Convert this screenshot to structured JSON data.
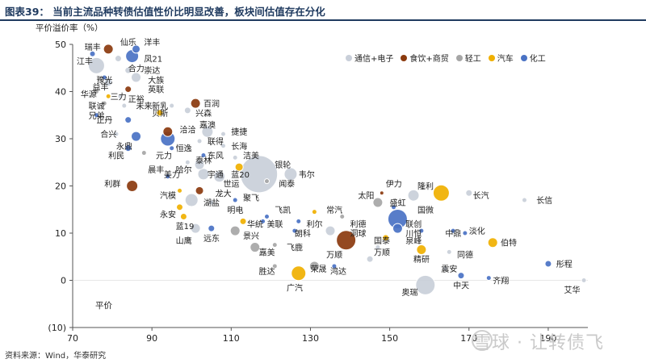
{
  "title": "图表39：  当前主流品种转债估值性价比明显改善，板块间估值存在分化",
  "source": "资料来源：Wind，华泰研究",
  "watermark": "雪球 · 让转债飞",
  "chart_data": {
    "type": "scatter",
    "ylabel": "平价溢价率（%）",
    "xlabel": "平价",
    "xlim": [
      70,
      200
    ],
    "ylim": [
      -10,
      50
    ],
    "xticks": [
      70,
      90,
      110,
      130,
      150,
      170,
      190
    ],
    "ytick_labels": [
      "(10)",
      "0",
      "10",
      "20",
      "30",
      "40",
      "50"
    ],
    "yticks": [
      -10,
      0,
      10,
      20,
      30,
      40,
      50
    ],
    "legend_position": "top-right",
    "series": [
      {
        "name": "通信+电子",
        "color": "#c9cfd9"
      },
      {
        "name": "食饮+商贸",
        "color": "#8b3a0e"
      },
      {
        "name": "轻工",
        "color": "#a6a6a6"
      },
      {
        "name": "汽车",
        "color": "#f0b000"
      },
      {
        "name": "化工",
        "color": "#4a72c4"
      }
    ],
    "points": [
      {
        "label": "瑞丰",
        "x": 75,
        "y": 48,
        "size": 3.5,
        "series": "化工"
      },
      {
        "label": "江丰",
        "x": 76,
        "y": 45.5,
        "size": 10,
        "series": "通信+电子"
      },
      {
        "label": "仙乐",
        "x": 79,
        "y": 49,
        "size": 6,
        "series": "食饮+商贸"
      },
      {
        "label": "洋丰",
        "x": 86,
        "y": 49,
        "size": 5,
        "series": "化工"
      },
      {
        "label": "凤21",
        "x": 85,
        "y": 47.5,
        "size": 8,
        "series": "化工"
      },
      {
        "label": "合力",
        "x": 81.5,
        "y": 47,
        "size": 4,
        "series": "通信+电子"
      },
      {
        "label": "崇达",
        "x": 84,
        "y": 44.5,
        "size": 4,
        "series": "通信+电子"
      },
      {
        "label": "大族",
        "x": 86,
        "y": 43,
        "size": 6,
        "series": "通信+电子"
      },
      {
        "label": "豫光",
        "x": 78,
        "y": 43,
        "size": 3,
        "series": "化工"
      },
      {
        "label": "益丰",
        "x": 79,
        "y": 42,
        "size": 5,
        "series": "通信+电子"
      },
      {
        "label": "英联",
        "x": 84,
        "y": 40.5,
        "size": 4,
        "series": "食饮+商贸"
      },
      {
        "label": "华源",
        "x": 76,
        "y": 40,
        "size": 3,
        "series": "轻工"
      },
      {
        "label": "三力",
        "x": 79,
        "y": 39,
        "size": 3,
        "series": "汽车"
      },
      {
        "label": "正裕",
        "x": 82,
        "y": 39,
        "size": 3,
        "series": "通信+电子"
      },
      {
        "label": "联诚",
        "x": 78,
        "y": 37.5,
        "size": 3,
        "series": "轻工"
      },
      {
        "label": "未来",
        "x": 83,
        "y": 37,
        "size": 3,
        "series": "通信+电子"
      },
      {
        "label": "新乳",
        "x": 95,
        "y": 37,
        "size": 3,
        "series": "通信+电子"
      },
      {
        "label": "百润",
        "x": 101,
        "y": 37.5,
        "size": 6,
        "series": "食饮+商贸"
      },
      {
        "label": "贝斯",
        "x": 92,
        "y": 35.5,
        "size": 4,
        "series": "汽车"
      },
      {
        "label": "兴森",
        "x": 99,
        "y": 36,
        "size": 4,
        "series": "通信+电子"
      },
      {
        "label": "兄弟",
        "x": 76,
        "y": 35,
        "size": 3,
        "series": "化工"
      },
      {
        "label": "正丹",
        "x": 84,
        "y": 34,
        "size": 4,
        "series": "化工"
      },
      {
        "label": "洽洽",
        "x": 94,
        "y": 31.5,
        "size": 6,
        "series": "食饮+商贸"
      },
      {
        "label": "嘉澳",
        "x": 104,
        "y": 31.5,
        "size": 7,
        "series": "通信+电子"
      },
      {
        "label": "合兴",
        "x": 81,
        "y": 31,
        "size": 3,
        "series": "通信+电子"
      },
      {
        "label": "捷捷",
        "x": 108,
        "y": 31,
        "size": 3,
        "series": "通信+电子"
      },
      {
        "label": "元力",
        "x": 94,
        "y": 30,
        "size": 9,
        "series": "化工"
      },
      {
        "label": "联得",
        "x": 102,
        "y": 29.5,
        "size": 3,
        "series": "通信+电子"
      },
      {
        "label": "永鼎",
        "x": 86,
        "y": 30.5,
        "size": 6,
        "series": "化工"
      },
      {
        "label": "长海",
        "x": 108,
        "y": 28.5,
        "size": 3,
        "series": "通信+电子"
      },
      {
        "label": "利民",
        "x": 84,
        "y": 28,
        "size": 4,
        "series": "化工"
      },
      {
        "label": "恒逸",
        "x": 95,
        "y": 28,
        "size": 3,
        "series": "化工"
      },
      {
        "label": "晨丰",
        "x": 88,
        "y": 27,
        "size": 3,
        "series": "轻工"
      },
      {
        "label": "东风",
        "x": 103,
        "y": 26.5,
        "size": 3,
        "series": "化工"
      },
      {
        "label": "洁美",
        "x": 111,
        "y": 26,
        "size": 3,
        "series": "通信+电子"
      },
      {
        "label": "哈尔",
        "x": 99,
        "y": 25,
        "size": 3,
        "series": "通信+电子"
      },
      {
        "label": "泰林",
        "x": 102,
        "y": 24.5,
        "size": 6,
        "series": "通信+电子"
      },
      {
        "label": "蓝20",
        "x": 112,
        "y": 24,
        "size": 5,
        "series": "汽车"
      },
      {
        "label": "银轮",
        "x": 117,
        "y": 22.5,
        "size": 23,
        "series": "通信+电子"
      },
      {
        "label": "韦尔",
        "x": 125,
        "y": 22.5,
        "size": 8,
        "series": "通信+电子"
      },
      {
        "label": "美力",
        "x": 94,
        "y": 22,
        "size": 3,
        "series": "化工"
      },
      {
        "label": "宇通",
        "x": 103,
        "y": 22.5,
        "size": 7,
        "series": "通信+电子"
      },
      {
        "label": "世运",
        "x": 107,
        "y": 22,
        "size": 7,
        "series": "通信+电子"
      },
      {
        "label": "闻泰",
        "x": 119,
        "y": 21,
        "size": 3,
        "series": "轻工"
      },
      {
        "label": "利群",
        "x": 85,
        "y": 20,
        "size": 7,
        "series": "食饮+商贸"
      },
      {
        "label": "龙大",
        "x": 102,
        "y": 19,
        "size": 5,
        "series": "食饮+商贸"
      },
      {
        "label": "汽模",
        "x": 97,
        "y": 19,
        "size": 3,
        "series": "汽车"
      },
      {
        "label": "湖盐",
        "x": 100,
        "y": 17,
        "size": 8,
        "series": "通信+电子"
      },
      {
        "label": "聚飞",
        "x": 111,
        "y": 17,
        "size": 3,
        "series": "化工"
      },
      {
        "label": "明电",
        "x": 105,
        "y": 16.5,
        "size": 3,
        "series": "通信+电子"
      },
      {
        "label": "伊力",
        "x": 148,
        "y": 18.5,
        "size": 2.5,
        "series": "食饮+商贸"
      },
      {
        "label": "隆利",
        "x": 156,
        "y": 18,
        "size": 7,
        "series": "通信+电子"
      },
      {
        "label": "太阳",
        "x": 147,
        "y": 16.5,
        "size": 6,
        "series": "轻工"
      },
      {
        "label": "盛虹",
        "x": 151,
        "y": 15.5,
        "size": 3,
        "series": "化工"
      },
      {
        "label": "国微",
        "x": 163,
        "y": 18.5,
        "size": 10,
        "series": "汽车"
      },
      {
        "label": "长汽",
        "x": 170,
        "y": 18.5,
        "size": 4,
        "series": "通信+电子"
      },
      {
        "label": "长信",
        "x": 184,
        "y": 17,
        "size": 3,
        "series": "通信+电子"
      },
      {
        "label": "永安",
        "x": 97,
        "y": 15.5,
        "size": 4,
        "series": "汽车"
      },
      {
        "label": "蓝19",
        "x": 98,
        "y": 13.5,
        "size": 4,
        "series": "汽车"
      },
      {
        "label": "飞凯",
        "x": 119,
        "y": 13.5,
        "size": 3,
        "series": "化工"
      },
      {
        "label": "常汽",
        "x": 131,
        "y": 14.5,
        "size": 3,
        "series": "汽车"
      },
      {
        "label": "利德",
        "x": 138,
        "y": 13.5,
        "size": 3,
        "series": "轻工"
      },
      {
        "label": "联创",
        "x": 152,
        "y": 13,
        "size": 12,
        "series": "化工"
      },
      {
        "label": "华统",
        "x": 113,
        "y": 12.5,
        "size": 4,
        "series": "汽车"
      },
      {
        "label": "美联",
        "x": 118,
        "y": 12.5,
        "size": 3,
        "series": "化工"
      },
      {
        "label": "利尔",
        "x": 127,
        "y": 12.5,
        "size": 3,
        "series": "化工"
      },
      {
        "label": "山鹰",
        "x": 101,
        "y": 11,
        "size": 6,
        "series": "通信+电子"
      },
      {
        "label": "远东",
        "x": 105,
        "y": 11,
        "size": 4,
        "series": "化工"
      },
      {
        "label": "景兴",
        "x": 111,
        "y": 10.5,
        "size": 6,
        "series": "轻工"
      },
      {
        "label": "朗科",
        "x": 126,
        "y": 10.5,
        "size": 3,
        "series": "化工"
      },
      {
        "label": "洞球",
        "x": 135,
        "y": 10.5,
        "size": 6,
        "series": "通信+电子"
      },
      {
        "label": "川恒",
        "x": 152,
        "y": 11,
        "size": 6,
        "series": "化工"
      },
      {
        "label": "泉峰",
        "x": 158,
        "y": 10.5,
        "size": 3,
        "series": "化工"
      },
      {
        "label": "中鼎",
        "x": 166,
        "y": 10.5,
        "size": 3,
        "series": "化工"
      },
      {
        "label": "淡化",
        "x": 169,
        "y": 10,
        "size": 3,
        "series": "化工"
      },
      {
        "label": "万顺",
        "x": 139,
        "y": 8.5,
        "size": 12,
        "series": "食饮+商贸"
      },
      {
        "label": "国泰",
        "x": 149,
        "y": 9,
        "size": 4,
        "series": "汽车"
      },
      {
        "label": "伯特",
        "x": 176,
        "y": 8,
        "size": 6,
        "series": "汽车"
      },
      {
        "label": "嘉美",
        "x": 116,
        "y": 7,
        "size": 6,
        "series": "轻工"
      },
      {
        "label": "飞鹿",
        "x": 121,
        "y": 7.5,
        "size": 3,
        "series": "轻工"
      },
      {
        "label": "万顺2",
        "x": 147,
        "y": 7,
        "size": 3,
        "series": "通信+电子"
      },
      {
        "label": "精研",
        "x": 158,
        "y": 6.5,
        "size": 6,
        "series": "汽车"
      },
      {
        "label": "同德",
        "x": 165,
        "y": 6,
        "size": 3,
        "series": "通信+电子"
      },
      {
        "label": "万顺3",
        "x": 145,
        "y": 4.5,
        "size": 4,
        "series": "通信+电子"
      },
      {
        "label": "胜达",
        "x": 121,
        "y": 3,
        "size": 3,
        "series": "轻工"
      },
      {
        "label": "广汽",
        "x": 127,
        "y": 1.5,
        "size": 9,
        "series": "汽车"
      },
      {
        "label": "荣晟",
        "x": 131,
        "y": 3,
        "size": 6,
        "series": "轻工"
      },
      {
        "label": "鸿达",
        "x": 136,
        "y": 3,
        "size": 3,
        "series": "化工"
      },
      {
        "label": "震安",
        "x": 164,
        "y": 2.5,
        "size": 3,
        "series": "通信+电子"
      },
      {
        "label": "彤程",
        "x": 190,
        "y": 3.5,
        "size": 4,
        "series": "化工"
      },
      {
        "label": "中天",
        "x": 168,
        "y": 1,
        "size": 4,
        "series": "化工"
      },
      {
        "label": "齐翔",
        "x": 175,
        "y": 0.5,
        "size": 3,
        "series": "化工"
      },
      {
        "label": "奥瑞",
        "x": 159,
        "y": -1,
        "size": 12,
        "series": "通信+电子"
      },
      {
        "label": "艾华",
        "x": 199,
        "y": 0,
        "size": 3,
        "series": "通信+电子"
      }
    ],
    "labels": [
      {
        "text": "瑞丰",
        "x": 73,
        "y": 49.5
      },
      {
        "text": "仙乐",
        "x": 82,
        "y": 50.5
      },
      {
        "text": "洋丰",
        "x": 88,
        "y": 50.5
      },
      {
        "text": "江丰",
        "x": 71,
        "y": 46.5
      },
      {
        "text": "凤21",
        "x": 88,
        "y": 47
      },
      {
        "text": "合力",
        "x": 84,
        "y": 45
      },
      {
        "text": "崇达",
        "x": 88,
        "y": 44.5
      },
      {
        "text": "大族",
        "x": 89,
        "y": 42.5
      },
      {
        "text": "豫光",
        "x": 76,
        "y": 42.5
      },
      {
        "text": "益丰",
        "x": 75,
        "y": 41
      },
      {
        "text": "英联",
        "x": 89,
        "y": 40.5
      },
      {
        "text": "华源",
        "x": 72,
        "y": 39.5
      },
      {
        "text": "三力",
        "x": 79.5,
        "y": 39
      },
      {
        "text": "正裕",
        "x": 84,
        "y": 38.5
      },
      {
        "text": "新乳",
        "x": 90,
        "y": 37
      },
      {
        "text": "百润",
        "x": 103,
        "y": 37.5
      },
      {
        "text": "联诚",
        "x": 74,
        "y": 37
      },
      {
        "text": "未来",
        "x": 86,
        "y": 37
      },
      {
        "text": "兴森",
        "x": 101,
        "y": 35.5
      },
      {
        "text": "贝斯",
        "x": 90,
        "y": 35.5
      },
      {
        "text": "兄弟",
        "x": 74,
        "y": 35
      },
      {
        "text": "正丹",
        "x": 76,
        "y": 34
      },
      {
        "text": "洽洽",
        "x": 97,
        "y": 32
      },
      {
        "text": "嘉澳",
        "x": 102,
        "y": 33
      },
      {
        "text": "合兴",
        "x": 77,
        "y": 31
      },
      {
        "text": "捷捷",
        "x": 110,
        "y": 31.5
      },
      {
        "text": "联得",
        "x": 104,
        "y": 29.5
      },
      {
        "text": "永鼎",
        "x": 81,
        "y": 28.5
      },
      {
        "text": "元力",
        "x": 91,
        "y": 26.5
      },
      {
        "text": "恒逸",
        "x": 96,
        "y": 28
      },
      {
        "text": "长海",
        "x": 110,
        "y": 28.5
      },
      {
        "text": "利民",
        "x": 79,
        "y": 26.5
      },
      {
        "text": "晨丰",
        "x": 89,
        "y": 23.5
      },
      {
        "text": "东风",
        "x": 104,
        "y": 26.5
      },
      {
        "text": "洁美",
        "x": 113,
        "y": 26.5
      },
      {
        "text": "哈尔",
        "x": 96,
        "y": 23.5
      },
      {
        "text": "泰林",
        "x": 101,
        "y": 25.5
      },
      {
        "text": "宇通",
        "x": 104,
        "y": 22.5
      },
      {
        "text": "世运",
        "x": 108,
        "y": 20.5
      },
      {
        "text": "蓝20",
        "x": 110,
        "y": 22.5
      },
      {
        "text": "银轮",
        "x": 121,
        "y": 24.5
      },
      {
        "text": "韦尔",
        "x": 127,
        "y": 22.5
      },
      {
        "text": "闻泰",
        "x": 122,
        "y": 20.5
      },
      {
        "text": "美力",
        "x": 93,
        "y": 22.5
      },
      {
        "text": "利群",
        "x": 78,
        "y": 20.5
      },
      {
        "text": "龙大",
        "x": 106,
        "y": 18.5
      },
      {
        "text": "汽模",
        "x": 92,
        "y": 18
      },
      {
        "text": "聚飞",
        "x": 113,
        "y": 17.5
      },
      {
        "text": "湖盐",
        "x": 103,
        "y": 16.5
      },
      {
        "text": "明电",
        "x": 109,
        "y": 15
      },
      {
        "text": "伊力",
        "x": 149,
        "y": 20.5
      },
      {
        "text": "隆利",
        "x": 157,
        "y": 20
      },
      {
        "text": "太阳",
        "x": 142,
        "y": 18
      },
      {
        "text": "盛虹",
        "x": 150,
        "y": 16.5
      },
      {
        "text": "国微",
        "x": 157,
        "y": 15
      },
      {
        "text": "长汽",
        "x": 171,
        "y": 18
      },
      {
        "text": "长信",
        "x": 187,
        "y": 17
      },
      {
        "text": "永安",
        "x": 92,
        "y": 14
      },
      {
        "text": "蓝19",
        "x": 96,
        "y": 11.5
      },
      {
        "text": "飞凯",
        "x": 121,
        "y": 15
      },
      {
        "text": "常汽",
        "x": 134,
        "y": 15
      },
      {
        "text": "利德",
        "x": 140,
        "y": 12
      },
      {
        "text": "联创",
        "x": 154,
        "y": 12
      },
      {
        "text": "华统",
        "x": 114,
        "y": 12
      },
      {
        "text": "美联",
        "x": 119,
        "y": 12
      },
      {
        "text": "利尔",
        "x": 129,
        "y": 12
      },
      {
        "text": "山鹰",
        "x": 96,
        "y": 8.5
      },
      {
        "text": "远东",
        "x": 103,
        "y": 9
      },
      {
        "text": "景兴",
        "x": 113,
        "y": 9.5
      },
      {
        "text": "朗科",
        "x": 126,
        "y": 10
      },
      {
        "text": "洞球",
        "x": 140,
        "y": 10
      },
      {
        "text": "川恒",
        "x": 154,
        "y": 10
      },
      {
        "text": "泉峰",
        "x": 154,
        "y": 8.5
      },
      {
        "text": "中鼎",
        "x": 164,
        "y": 10
      },
      {
        "text": "淡化",
        "x": 170,
        "y": 10.5
      },
      {
        "text": "万顺",
        "x": 134,
        "y": 5.5
      },
      {
        "text": "国泰",
        "x": 146,
        "y": 8.5
      },
      {
        "text": "伯特",
        "x": 178,
        "y": 8
      },
      {
        "text": "嘉美",
        "x": 117,
        "y": 6
      },
      {
        "text": "飞鹿",
        "x": 124,
        "y": 7
      },
      {
        "text": "万顺",
        "x": 146,
        "y": 6
      },
      {
        "text": "精研",
        "x": 156,
        "y": 4.5
      },
      {
        "text": "同德",
        "x": 167,
        "y": 5.5
      },
      {
        "text": "胜达",
        "x": 117,
        "y": 2
      },
      {
        "text": "广汽",
        "x": 124,
        "y": -1.5
      },
      {
        "text": "荣晟",
        "x": 130,
        "y": 2.5
      },
      {
        "text": "鸿达",
        "x": 135,
        "y": 2
      },
      {
        "text": "震安",
        "x": 163,
        "y": 2.5
      },
      {
        "text": "彤程",
        "x": 192,
        "y": 3.5
      },
      {
        "text": "中天",
        "x": 166,
        "y": -1
      },
      {
        "text": "齐翔",
        "x": 176,
        "y": 0
      },
      {
        "text": "奥瑞",
        "x": 153,
        "y": -2.5
      },
      {
        "text": "艾华",
        "x": 194,
        "y": -2
      }
    ]
  }
}
